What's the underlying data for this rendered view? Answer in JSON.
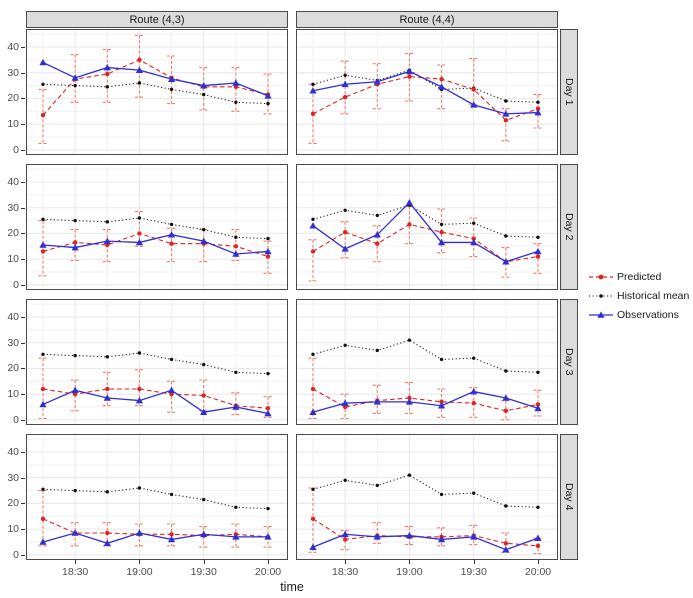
{
  "figure": {
    "xlabel": "time"
  },
  "legend": {
    "items": [
      {
        "label": "Predicted",
        "key": "dashed-red-circle"
      },
      {
        "label": "Historical mean",
        "key": "dotted-black-circle"
      },
      {
        "label": "Observations",
        "key": "solid-blue-triangle"
      }
    ]
  },
  "colors": {
    "predicted": "#e0231e",
    "predicted_interval": "#ec7d74",
    "historical": "#111111",
    "observations": "#2f2fd3",
    "strip_bg": "#dcdcdc",
    "panel_border": "#4a4a4a",
    "grid_major": "#e7e7e7",
    "grid_minor": "#f2f2f2",
    "axis_text": "#4d4d4d"
  },
  "chart_data": {
    "type": "line",
    "title": "",
    "xlabel": "time",
    "x": [
      "18:15",
      "18:30",
      "18:45",
      "19:00",
      "19:15",
      "19:30",
      "19:45",
      "20:00"
    ],
    "x_tick_labels": [
      "18:30",
      "19:00",
      "19:30",
      "20:00"
    ],
    "x_tick_indices": [
      1,
      3,
      5,
      7
    ],
    "yticks": [
      0,
      10,
      20,
      30,
      40
    ],
    "ylim": [
      -2,
      47
    ],
    "grid": true,
    "legend_position": "right",
    "facet_cols": [
      "Route (4,3)",
      "Route (4,4)"
    ],
    "facet_rows": [
      "Day 1",
      "Day 2",
      "Day 3",
      "Day 4"
    ],
    "series_names": [
      "Predicted",
      "Historical mean",
      "Observations"
    ],
    "panels": [
      {
        "route": "Route (4,3)",
        "day": "Day 1",
        "predicted": [
          13.5,
          27.5,
          29.5,
          35,
          28,
          24.5,
          24.5,
          21.5
        ],
        "predicted_interval": [
          [
            2.5,
            23.5
          ],
          [
            18.5,
            37
          ],
          [
            18.5,
            39
          ],
          [
            20.5,
            44.5
          ],
          [
            18,
            36.5
          ],
          [
            15.5,
            32
          ],
          [
            15,
            32
          ],
          [
            14,
            29.5
          ]
        ],
        "historical_mean": [
          25.5,
          25,
          24.5,
          26,
          23.5,
          21.5,
          18.5,
          18
        ],
        "observations": [
          34,
          28,
          32,
          31,
          27.5,
          25,
          26,
          21
        ]
      },
      {
        "route": "Route (4,4)",
        "day": "Day 1",
        "predicted": [
          14,
          20.5,
          25.5,
          28.5,
          27.5,
          23.5,
          11.5,
          16
        ],
        "predicted_interval": [
          [
            2.5,
            25.5
          ],
          [
            14,
            34.5
          ],
          [
            16,
            33.5
          ],
          [
            19,
            37.5
          ],
          [
            16,
            33
          ],
          [
            17.5,
            35.5
          ],
          [
            3.5,
            16
          ],
          [
            8.5,
            21.5
          ]
        ],
        "historical_mean": [
          25.5,
          29,
          27,
          31,
          23.5,
          24,
          19,
          18.5
        ],
        "observations": [
          23,
          25.5,
          26.5,
          30.5,
          24.5,
          17.5,
          14,
          14.5
        ]
      },
      {
        "route": "Route (4,3)",
        "day": "Day 2",
        "predicted": [
          13,
          16.5,
          15.5,
          20,
          16,
          16,
          15,
          11
        ],
        "predicted_interval": [
          [
            3.5,
            25
          ],
          [
            9.5,
            21.5
          ],
          [
            9,
            21.5
          ],
          [
            15,
            28.5
          ],
          [
            9,
            22
          ],
          [
            9,
            21.5
          ],
          [
            9.5,
            21.5
          ],
          [
            4.5,
            17
          ]
        ],
        "historical_mean": [
          25.5,
          25,
          24.5,
          26,
          23.5,
          21.5,
          18.5,
          18
        ],
        "observations": [
          15.5,
          14.5,
          17,
          16.5,
          19.5,
          17,
          12,
          13
        ]
      },
      {
        "route": "Route (4,4)",
        "day": "Day 2",
        "predicted": [
          13,
          20.5,
          16,
          23.5,
          20.5,
          18,
          9,
          11
        ],
        "predicted_interval": [
          [
            1.5,
            17.5
          ],
          [
            10.5,
            24.5
          ],
          [
            9,
            23
          ],
          [
            16,
            30.5
          ],
          [
            12.5,
            29.5
          ],
          [
            11,
            26
          ],
          [
            3,
            14.5
          ],
          [
            4.5,
            16
          ]
        ],
        "historical_mean": [
          25.5,
          29,
          27,
          31,
          23.5,
          24,
          19,
          18.5
        ],
        "observations": [
          23,
          14,
          19.5,
          32,
          16.5,
          16.5,
          9,
          13
        ]
      },
      {
        "route": "Route (4,3)",
        "day": "Day 3",
        "predicted": [
          12,
          10,
          12,
          12,
          10,
          9.5,
          5.5,
          4.5
        ],
        "predicted_interval": [
          [
            0.5,
            24
          ],
          [
            3.5,
            15.5
          ],
          [
            5.5,
            18.5
          ],
          [
            5.5,
            19.5
          ],
          [
            3,
            15
          ],
          [
            3.5,
            15.5
          ],
          [
            2,
            10.5
          ],
          [
            1,
            9
          ]
        ],
        "historical_mean": [
          25.5,
          25,
          24.5,
          26,
          23.5,
          21.5,
          18.5,
          18
        ],
        "observations": [
          6,
          11.5,
          8.5,
          7.5,
          11.5,
          3,
          5,
          2.5
        ]
      },
      {
        "route": "Route (4,4)",
        "day": "Day 3",
        "predicted": [
          12,
          5,
          7.5,
          8.5,
          7,
          6.5,
          3.5,
          6
        ],
        "predicted_interval": [
          [
            0.5,
            24
          ],
          [
            0.5,
            10
          ],
          [
            2.5,
            13.5
          ],
          [
            2.5,
            14.5
          ],
          [
            1,
            12
          ],
          [
            1,
            12.5
          ],
          [
            0,
            7.5
          ],
          [
            1.5,
            11.5
          ]
        ],
        "historical_mean": [
          25.5,
          29,
          27,
          31,
          23.5,
          24,
          19,
          18.5
        ],
        "observations": [
          3,
          6.5,
          7,
          7,
          5.5,
          11,
          8.5,
          4.5
        ]
      },
      {
        "route": "Route (4,3)",
        "day": "Day 4",
        "predicted": [
          14,
          8.5,
          8.5,
          8,
          8,
          7.5,
          8,
          7
        ],
        "predicted_interval": [
          [
            3.5,
            25
          ],
          [
            3.5,
            12.5
          ],
          [
            3.5,
            12.5
          ],
          [
            3.5,
            12
          ],
          [
            3.5,
            12
          ],
          [
            3,
            11
          ],
          [
            3,
            12
          ],
          [
            3,
            11
          ]
        ],
        "historical_mean": [
          25.5,
          25,
          24.5,
          26,
          23.5,
          21.5,
          18.5,
          18
        ],
        "observations": [
          5,
          8.5,
          4.5,
          8.5,
          6,
          8,
          7,
          7
        ]
      },
      {
        "route": "Route (4,4)",
        "day": "Day 4",
        "predicted": [
          14,
          6,
          7.5,
          7,
          7,
          7.5,
          4.5,
          3.5
        ],
        "predicted_interval": [
          [
            1,
            26
          ],
          [
            2,
            9.5
          ],
          [
            4.5,
            12.5
          ],
          [
            4,
            11
          ],
          [
            3.5,
            10.5
          ],
          [
            4,
            11.5
          ],
          [
            1,
            8.5
          ],
          [
            0.5,
            6.5
          ]
        ],
        "historical_mean": [
          25.5,
          29,
          27,
          31,
          23.5,
          24,
          19,
          18.5
        ],
        "observations": [
          3,
          8,
          7,
          7.5,
          6,
          7,
          2,
          6.5
        ]
      }
    ]
  }
}
